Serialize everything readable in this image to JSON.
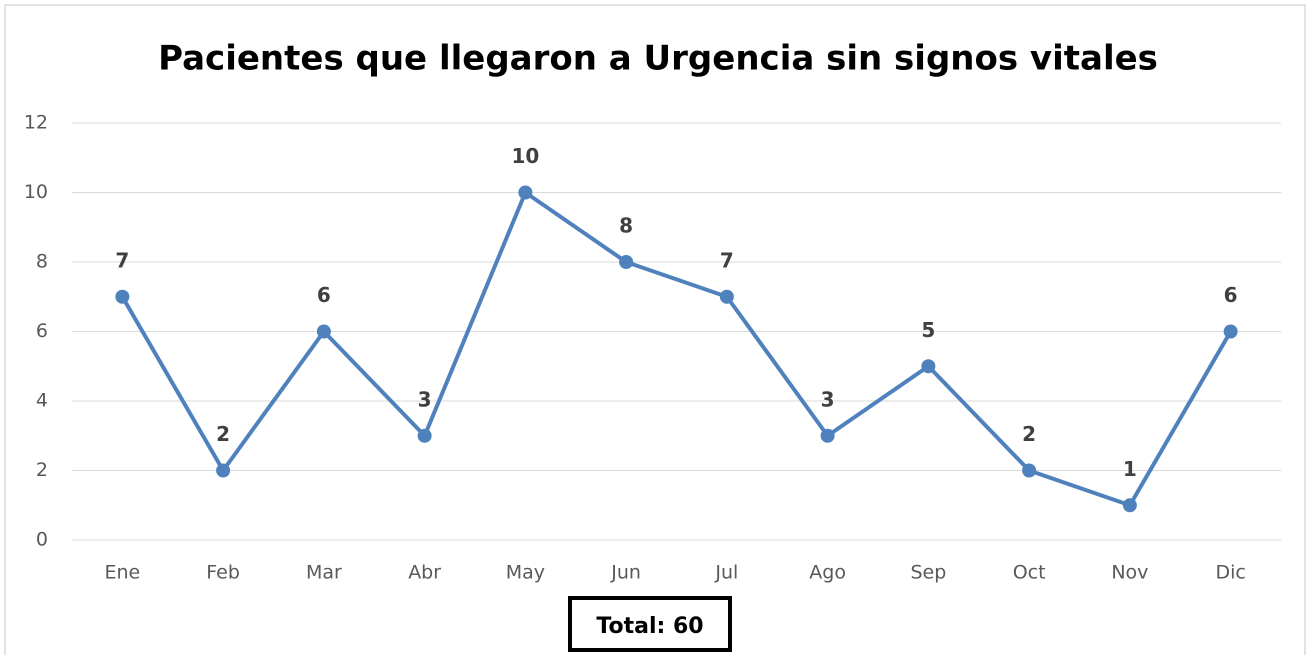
{
  "chart_data": {
    "type": "line",
    "title": "Pacientes que llegaron a Urgencia sin signos vitales",
    "categories": [
      "Ene",
      "Feb",
      "Mar",
      "Abr",
      "May",
      "Jun",
      "Jul",
      "Ago",
      "Sep",
      "Oct",
      "Nov",
      "Dic"
    ],
    "series": [
      {
        "name": "Pacientes",
        "color": "#4f81bd",
        "values": [
          7,
          2,
          6,
          3,
          10,
          8,
          7,
          3,
          5,
          2,
          1,
          6
        ]
      }
    ],
    "ylim": [
      0,
      12
    ],
    "yticks": [
      0,
      2,
      4,
      6,
      8,
      10,
      12
    ],
    "grid": true,
    "annotation": "Total: 60"
  }
}
